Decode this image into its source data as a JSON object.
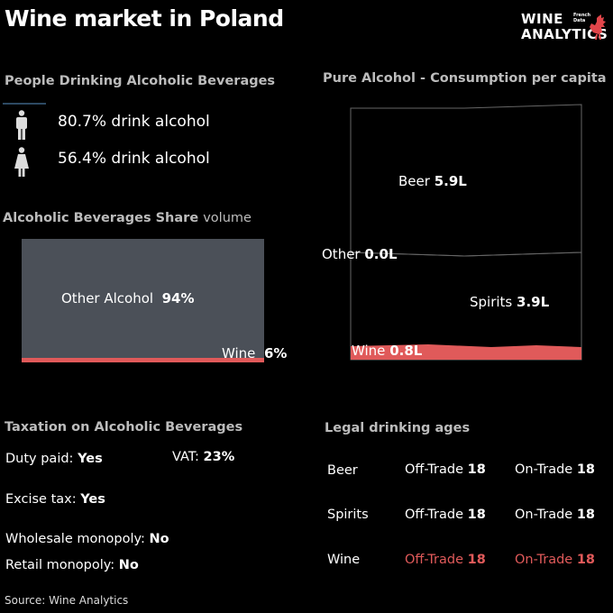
{
  "title": "Wine market in Poland",
  "logo": {
    "line1": "WINE",
    "line2": "ANALYTICS",
    "tag1": "French",
    "tag2": "Data",
    "icon": "rooster-icon"
  },
  "people": {
    "title": "People Drinking Alcoholic Beverages",
    "men": {
      "icon": "man-icon",
      "text": "80.7% drink alcohol",
      "value": 80.7
    },
    "women": {
      "icon": "woman-icon",
      "text": "56.4% drink alcohol",
      "value": 56.4
    }
  },
  "share": {
    "title": "Alcoholic Beverages Share",
    "title_suffix": "volume",
    "other_label": "Other Alcohol",
    "other_value": "94%",
    "wine_label": "Wine",
    "wine_value": "6%"
  },
  "pure": {
    "title": "Pure Alcohol - Consumption per capita",
    "beer_label": "Beer",
    "beer_value": "5.9L",
    "other_label": "Other",
    "other_value": "0.0L",
    "spirits_label": "Spirits",
    "spirits_value": "3.9L",
    "wine_label": "Wine",
    "wine_value": "0.8L"
  },
  "tax": {
    "title": "Taxation on Alcoholic Beverages",
    "duty_label": "Duty paid:",
    "duty_value": "Yes",
    "vat_label": "VAT:",
    "vat_value": "23%",
    "excise_label": "Excise tax:",
    "excise_value": "Yes",
    "wholesale_label": "Wholesale monopoly:",
    "wholesale_value": "No",
    "retail_label": "Retail monopoly:",
    "retail_value": "No"
  },
  "ages": {
    "title": "Legal drinking ages",
    "rows": [
      {
        "drink": "Beer",
        "off_label": "Off-Trade",
        "off_value": "18",
        "on_label": "On-Trade",
        "on_value": "18"
      },
      {
        "drink": "Spirits",
        "off_label": "Off-Trade",
        "off_value": "18",
        "on_label": "On-Trade",
        "on_value": "18"
      },
      {
        "drink": "Wine",
        "off_label": "Off-Trade",
        "off_value": "18",
        "on_label": "On-Trade",
        "on_value": "18"
      }
    ]
  },
  "source": "Source: Wine Analytics",
  "colors": {
    "wine": "#e05a5a",
    "other": "#4b5058",
    "background": "#000000"
  },
  "chart_data": [
    {
      "type": "bar",
      "title": "Alcoholic Beverages Share",
      "categories": [
        "Other Alcohol",
        "Wine"
      ],
      "values": [
        94,
        6
      ],
      "unit": "%"
    },
    {
      "type": "area",
      "title": "Pure Alcohol - Consumption per capita",
      "categories": [
        "Beer",
        "Other",
        "Spirits",
        "Wine"
      ],
      "values": [
        5.9,
        0.0,
        3.9,
        0.8
      ],
      "unit": "L"
    }
  ]
}
